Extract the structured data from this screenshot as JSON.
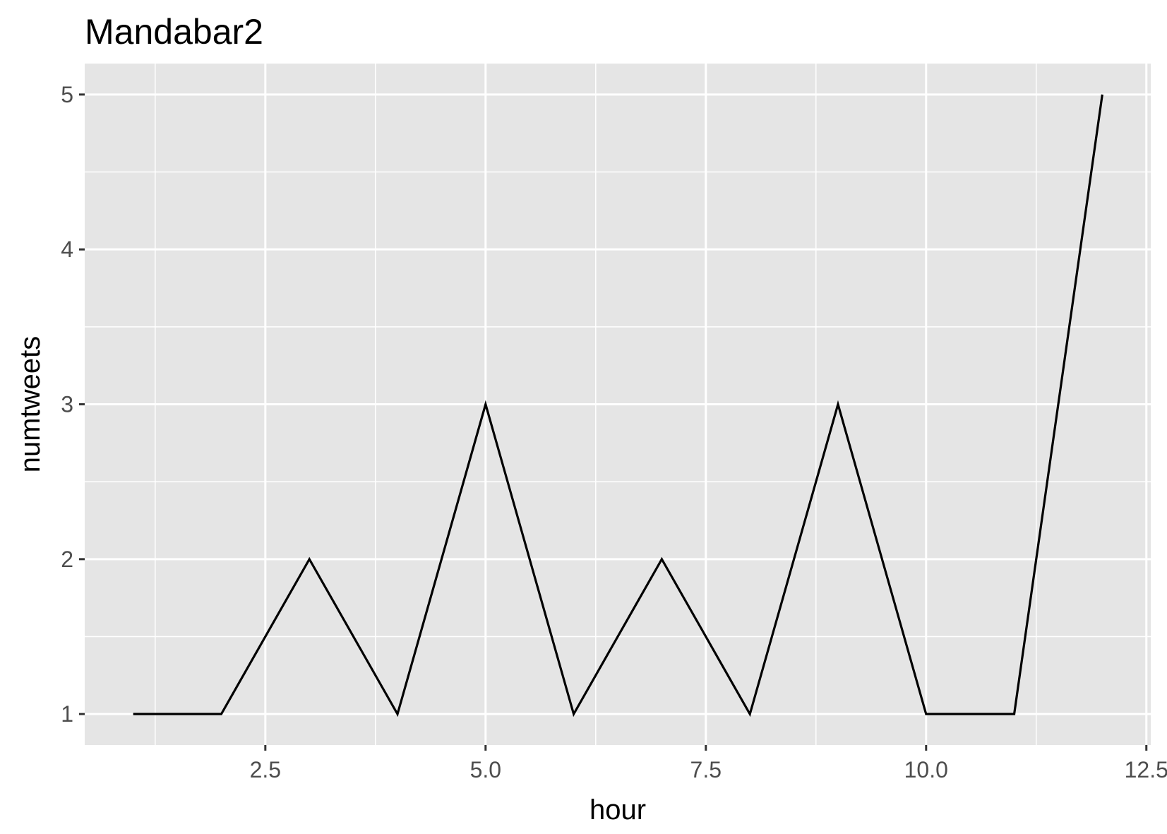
{
  "chart_data": {
    "type": "line",
    "title": "Mandabar2",
    "xlabel": "hour",
    "ylabel": "numtweets",
    "x": [
      1,
      2,
      3,
      4,
      5,
      6,
      7,
      8,
      9,
      10,
      11,
      12
    ],
    "series": [
      {
        "values": [
          1,
          1,
          2,
          1,
          3,
          1,
          2,
          1,
          3,
          1,
          1,
          5
        ]
      }
    ],
    "xlim": [
      0.45,
      12.55
    ],
    "ylim": [
      0.8,
      5.2
    ],
    "x_ticks": [
      "2.5",
      "5.0",
      "7.5",
      "10.0",
      "12.5"
    ],
    "y_ticks": [
      "1",
      "2",
      "3",
      "4",
      "5"
    ],
    "grid": true,
    "legend": "none",
    "colors": {
      "panel": "#e5e5e5",
      "grid": "#ffffff",
      "line": "#000000"
    }
  }
}
